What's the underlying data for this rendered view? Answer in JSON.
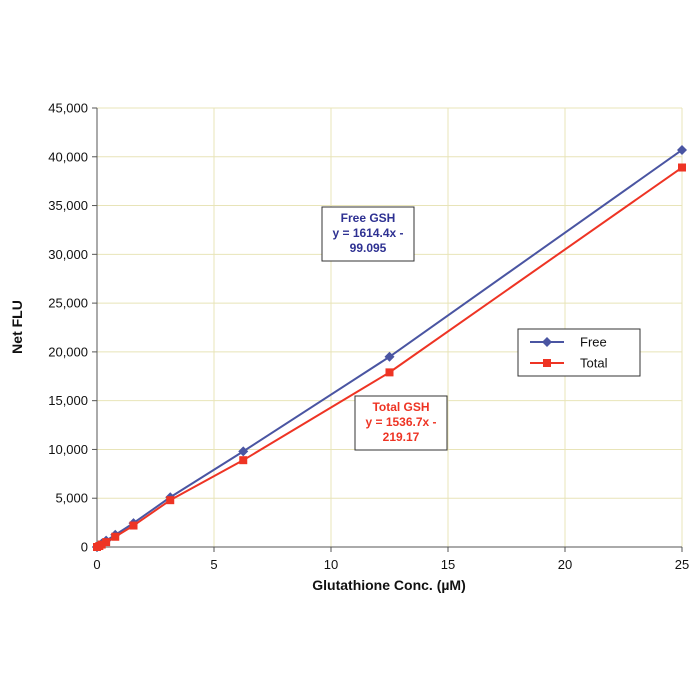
{
  "chart_data": {
    "type": "line",
    "xlabel": "Glutathione Conc. (µM)",
    "ylabel": "Net FLU",
    "xlim": [
      0,
      25
    ],
    "ylim": [
      0,
      45000
    ],
    "x_ticks": [
      "0",
      "5",
      "10",
      "15",
      "20",
      "25"
    ],
    "y_ticks": [
      "0",
      "5,000",
      "10,000",
      "15,000",
      "20,000",
      "25,000",
      "30,000",
      "35,000",
      "40,000",
      "45,000"
    ],
    "grid": true,
    "grid_color": "#e8e4b8",
    "legend_position": "right",
    "series": [
      {
        "name": "Free",
        "color": "#4a55a2",
        "marker": "diamond",
        "x": [
          0,
          0.1,
          0.2,
          0.39,
          0.78,
          1.56,
          3.13,
          6.25,
          12.5,
          25
        ],
        "y": [
          0,
          150,
          350,
          650,
          1250,
          2450,
          5100,
          9800,
          19500,
          40700
        ]
      },
      {
        "name": "Total",
        "color": "#ee3424",
        "marker": "square",
        "x": [
          0,
          0.1,
          0.2,
          0.39,
          0.78,
          1.56,
          3.13,
          6.25,
          12.5,
          25
        ],
        "y": [
          0,
          100,
          250,
          500,
          1050,
          2200,
          4800,
          8900,
          17900,
          38900
        ]
      }
    ],
    "annotations": [
      {
        "lines": [
          "Free GSH",
          "y = 1614.4x -",
          "99.095"
        ],
        "color": "#2e3192"
      },
      {
        "lines": [
          "Total GSH",
          "y = 1536.7x -",
          "219.17"
        ],
        "color": "#ee3424"
      }
    ]
  }
}
